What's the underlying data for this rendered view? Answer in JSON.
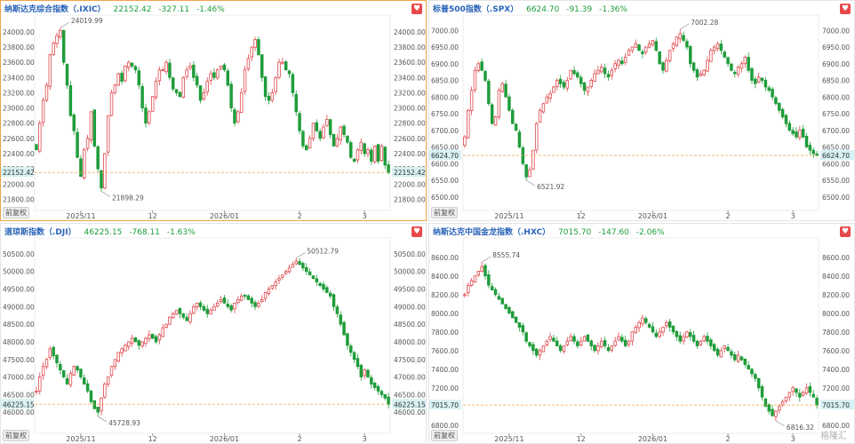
{
  "colors": {
    "up": "#e0474c",
    "down": "#1f9d3a",
    "accent": "#f0a24a",
    "title": "#2a63b8",
    "lastBg": "#d7f1f4"
  },
  "watermark": "格隆汇",
  "charts": [
    {
      "name": "纳斯达克综合指数（.IXIC）",
      "price": "22152.42",
      "change": "-327.11",
      "pct": "-1.46%",
      "fq_button": "前复权",
      "fav_icon": "heart-icon",
      "active": true,
      "chart_data": {
        "type": "candlestick",
        "ylim": [
          21700,
          24150
        ],
        "yticks": [
          "21800.00",
          "22000.00",
          "22200.00",
          "22400.00",
          "22600.00",
          "22800.00",
          "23000.00",
          "23200.00",
          "23400.00",
          "23600.00",
          "23800.00",
          "24000.00"
        ],
        "xticks": [
          {
            "label": "2025/11",
            "i": 13
          },
          {
            "label": "12",
            "i": 34
          },
          {
            "label": "2026/01",
            "i": 55
          },
          {
            "label": "2",
            "i": 77
          },
          {
            "label": "3",
            "i": 96
          }
        ],
        "high_label": "24019.99",
        "low_label": "21898.29",
        "last": "22152.42",
        "last_value": 22152.42,
        "closes": [
          22450,
          22800,
          23100,
          23300,
          23700,
          23850,
          23950,
          24019.99,
          23600,
          23300,
          22900,
          22700,
          22350,
          22100,
          22450,
          22600,
          22950,
          22500,
          22200,
          21950,
          22400,
          22900,
          23200,
          23300,
          23450,
          23350,
          23550,
          23600,
          23550,
          23500,
          23300,
          23000,
          22800,
          22950,
          23150,
          23350,
          23500,
          23500,
          23600,
          23400,
          23250,
          23200,
          23150,
          23400,
          23500,
          23550,
          23400,
          23300,
          23100,
          23200,
          23350,
          23450,
          23400,
          23500,
          23550,
          23500,
          23300,
          23000,
          22800,
          22950,
          23200,
          23500,
          23650,
          23800,
          23900,
          23700,
          23400,
          23150,
          23100,
          23200,
          23400,
          23600,
          23600,
          23500,
          23450,
          23200,
          22950,
          22700,
          22500,
          22450,
          22600,
          22800,
          22700,
          22600,
          22750,
          22850,
          22650,
          22500,
          22600,
          22750,
          22650,
          22550,
          22350,
          22300,
          22450,
          22550,
          22400,
          22450,
          22300,
          22500,
          22300,
          22500,
          22250,
          22152.42
        ],
        "high": "24019.99",
        "low": "21898.29"
      }
    },
    {
      "name": "标普500指数（.SPX）",
      "price": "6624.70",
      "change": "-91.39",
      "pct": "-1.36%",
      "fq_button": "前复权",
      "fav_icon": "heart-icon",
      "active": false,
      "chart_data": {
        "type": "candlestick",
        "ylim": [
          6470,
          7030
        ],
        "yticks": [
          "6500.00",
          "6550.00",
          "6600.00",
          "6650.00",
          "6700.00",
          "6750.00",
          "6800.00",
          "6850.00",
          "6900.00",
          "6950.00",
          "7000.00"
        ],
        "xticks": [
          {
            "label": "2025/11",
            "i": 13
          },
          {
            "label": "12",
            "i": 34
          },
          {
            "label": "2026/01",
            "i": 55
          },
          {
            "label": "2",
            "i": 77
          },
          {
            "label": "3",
            "i": 96
          }
        ],
        "high_label": "7002.28",
        "low_label": "6521.92",
        "last": "6624.70",
        "last_value": 6624.7,
        "closes": [
          6680,
          6760,
          6820,
          6880,
          6900,
          6880,
          6850,
          6780,
          6720,
          6740,
          6820,
          6840,
          6800,
          6760,
          6720,
          6700,
          6650,
          6600,
          6560,
          6580,
          6640,
          6720,
          6760,
          6780,
          6800,
          6810,
          6830,
          6850,
          6840,
          6830,
          6850,
          6880,
          6870,
          6860,
          6840,
          6820,
          6830,
          6850,
          6870,
          6880,
          6890,
          6870,
          6860,
          6880,
          6900,
          6910,
          6900,
          6920,
          6940,
          6950,
          6960,
          6940,
          6930,
          6950,
          6960,
          6970,
          6940,
          6900,
          6880,
          6910,
          6940,
          6960,
          6980,
          6990,
          6970,
          6950,
          6900,
          6880,
          6860,
          6870,
          6880,
          6910,
          6940,
          6950,
          6960,
          6940,
          6920,
          6900,
          6880,
          6870,
          6890,
          6900,
          6920,
          6880,
          6850,
          6840,
          6860,
          6850,
          6830,
          6820,
          6800,
          6780,
          6760,
          6740,
          6720,
          6700,
          6690,
          6680,
          6700,
          6680,
          6650,
          6640,
          6630,
          6624.7
        ]
      }
    },
    {
      "name": "道琼斯指数（.DJI）",
      "price": "46225.15",
      "change": "-768.11",
      "pct": "-1.63%",
      "fq_button": "前复权",
      "fav_icon": "heart-icon",
      "active": false,
      "chart_data": {
        "type": "candlestick",
        "ylim": [
          45500,
          50800
        ],
        "yticks": [
          "46000.00",
          "46500.00",
          "47000.00",
          "47500.00",
          "48000.00",
          "48500.00",
          "49000.00",
          "49500.00",
          "50000.00",
          "50500.00"
        ],
        "xticks": [
          {
            "label": "2025/11",
            "i": 13
          },
          {
            "label": "12",
            "i": 34
          },
          {
            "label": "2026/01",
            "i": 55
          },
          {
            "label": "2",
            "i": 77
          },
          {
            "label": "3",
            "i": 96
          }
        ],
        "high_label": "50512.79",
        "low_label": "45728.93",
        "last": "46225.15",
        "last_value": 46225.15,
        "closes": [
          46600,
          47000,
          47300,
          47500,
          47800,
          47600,
          47400,
          47200,
          47000,
          46800,
          47100,
          47300,
          47200,
          47000,
          46800,
          46600,
          46300,
          46100,
          46000,
          46400,
          46800,
          47000,
          47300,
          47500,
          47700,
          47800,
          47900,
          48000,
          48100,
          48000,
          47900,
          48000,
          48100,
          48200,
          48100,
          48000,
          48200,
          48400,
          48500,
          48700,
          48800,
          48900,
          48800,
          48700,
          48600,
          48800,
          49000,
          49100,
          49000,
          48900,
          48800,
          48900,
          49000,
          49100,
          49200,
          49100,
          49000,
          48900,
          49100,
          49200,
          49300,
          49300,
          49200,
          49100,
          49000,
          49100,
          49200,
          49400,
          49500,
          49600,
          49700,
          49800,
          49900,
          50000,
          50100,
          50200,
          50300,
          50200,
          50100,
          50000,
          49900,
          49800,
          49700,
          49600,
          49500,
          49400,
          49300,
          49000,
          48800,
          48500,
          48200,
          47900,
          47700,
          47500,
          47300,
          47000,
          47200,
          47000,
          46800,
          46700,
          46600,
          46500,
          46400,
          46225.15
        ]
      }
    },
    {
      "name": "纳斯达克中国金龙指数（.HXC）",
      "price": "7015.70",
      "change": "-147.60",
      "pct": "-2.06%",
      "fq_button": "前复权",
      "fav_icon": "heart-icon",
      "active": false,
      "chart_data": {
        "type": "candlestick",
        "ylim": [
          6750,
          8750
        ],
        "yticks": [
          "6800.00",
          "7000.00",
          "7200.00",
          "7400.00",
          "7600.00",
          "7800.00",
          "8000.00",
          "8200.00",
          "8400.00",
          "8600.00"
        ],
        "xticks": [
          {
            "label": "2025/11",
            "i": 13
          },
          {
            "label": "12",
            "i": 34
          },
          {
            "label": "2026/01",
            "i": 55
          },
          {
            "label": "2",
            "i": 77
          },
          {
            "label": "3",
            "i": 96
          }
        ],
        "high_label": "8555.74",
        "low_label": "6816.32",
        "last": "7015.70",
        "last_value": 7015.7,
        "closes": [
          8200,
          8300,
          8350,
          8400,
          8450,
          8500,
          8400,
          8300,
          8250,
          8200,
          8150,
          8100,
          8050,
          8000,
          7950,
          7900,
          7850,
          7800,
          7700,
          7650,
          7600,
          7550,
          7600,
          7650,
          7700,
          7750,
          7700,
          7650,
          7600,
          7650,
          7700,
          7750,
          7700,
          7650,
          7700,
          7750,
          7700,
          7650,
          7600,
          7650,
          7700,
          7650,
          7600,
          7650,
          7700,
          7750,
          7700,
          7650,
          7700,
          7800,
          7850,
          7900,
          7950,
          7900,
          7850,
          7800,
          7750,
          7800,
          7850,
          7900,
          7850,
          7800,
          7750,
          7700,
          7750,
          7800,
          7750,
          7700,
          7650,
          7700,
          7750,
          7700,
          7650,
          7600,
          7550,
          7600,
          7650,
          7600,
          7550,
          7500,
          7550,
          7500,
          7450,
          7400,
          7350,
          7300,
          7200,
          7100,
          7000,
          6950,
          6900,
          6950,
          7000,
          7050,
          7100,
          7150,
          7200,
          7150,
          7100,
          7150,
          7200,
          7150,
          7100,
          7015.7
        ]
      }
    }
  ]
}
